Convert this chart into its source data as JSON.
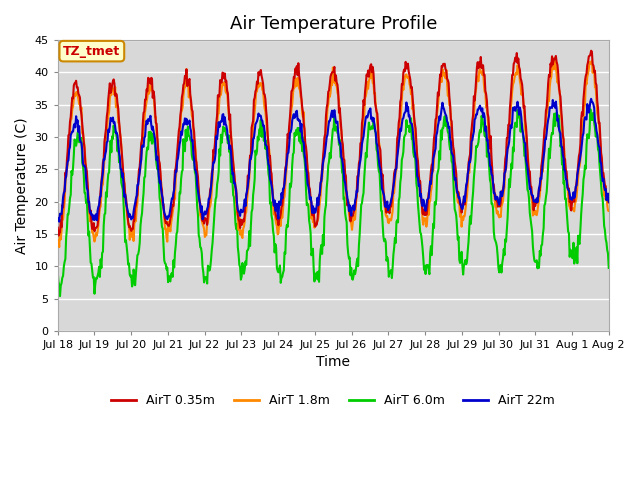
{
  "title": "Air Temperature Profile",
  "xlabel": "Time",
  "ylabel": "Air Temperature (C)",
  "annotation": "TZ_tmet",
  "ylim": [
    0,
    45
  ],
  "yticks": [
    0,
    5,
    10,
    15,
    20,
    25,
    30,
    35,
    40,
    45
  ],
  "n_days": 15,
  "x_tick_labels": [
    "Jul 18",
    "Jul 19",
    "Jul 20",
    "Jul 21",
    "Jul 22",
    "Jul 23",
    "Jul 24",
    "Jul 25",
    "Jul 26",
    "Jul 27",
    "Jul 28",
    "Jul 29",
    "Jul 30",
    "Jul 31",
    "Aug 1",
    "Aug 2"
  ],
  "series_colors": [
    "#cc0000",
    "#ff8800",
    "#00cc00",
    "#0000cc"
  ],
  "series_labels": [
    "AirT 0.35m",
    "AirT 1.8m",
    "AirT 6.0m",
    "AirT 22m"
  ],
  "line_width": 1.5,
  "plot_bg_color": "#d8d8d8",
  "title_fontsize": 13,
  "axis_label_fontsize": 10,
  "tick_fontsize": 8
}
